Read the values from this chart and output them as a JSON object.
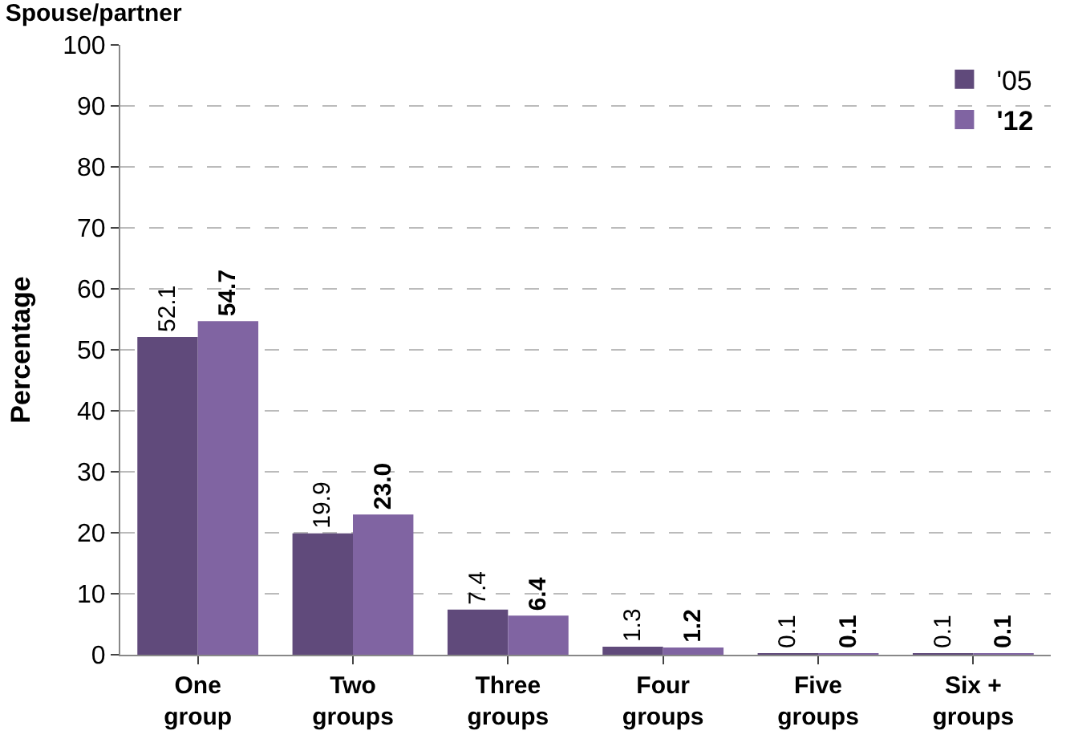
{
  "chart_data": {
    "type": "bar",
    "title": "Spouse/partner",
    "ylabel": "Percentage",
    "categories": [
      "One group",
      "Two groups",
      "Three groups",
      "Four groups",
      "Five groups",
      "Six + groups"
    ],
    "series": [
      {
        "name": "'05",
        "color": "#604a7b",
        "values": [
          52.1,
          19.9,
          7.4,
          1.3,
          0.1,
          0.1
        ],
        "value_labels": [
          "52.1",
          "19.9",
          "7.4",
          "1.3",
          "0.1",
          "0.1"
        ]
      },
      {
        "name": "'12",
        "color": "#8064a2",
        "values": [
          54.7,
          23.0,
          6.4,
          1.2,
          0.1,
          0.1
        ],
        "value_labels": [
          "54.7",
          "23.0",
          "6.4",
          "1.2",
          "0.1",
          "0.1"
        ]
      }
    ],
    "ylim": [
      0,
      100
    ],
    "yticks": [
      0,
      10,
      20,
      30,
      40,
      50,
      60,
      70,
      80,
      90,
      100
    ],
    "grid": "y",
    "legend": "top right"
  }
}
